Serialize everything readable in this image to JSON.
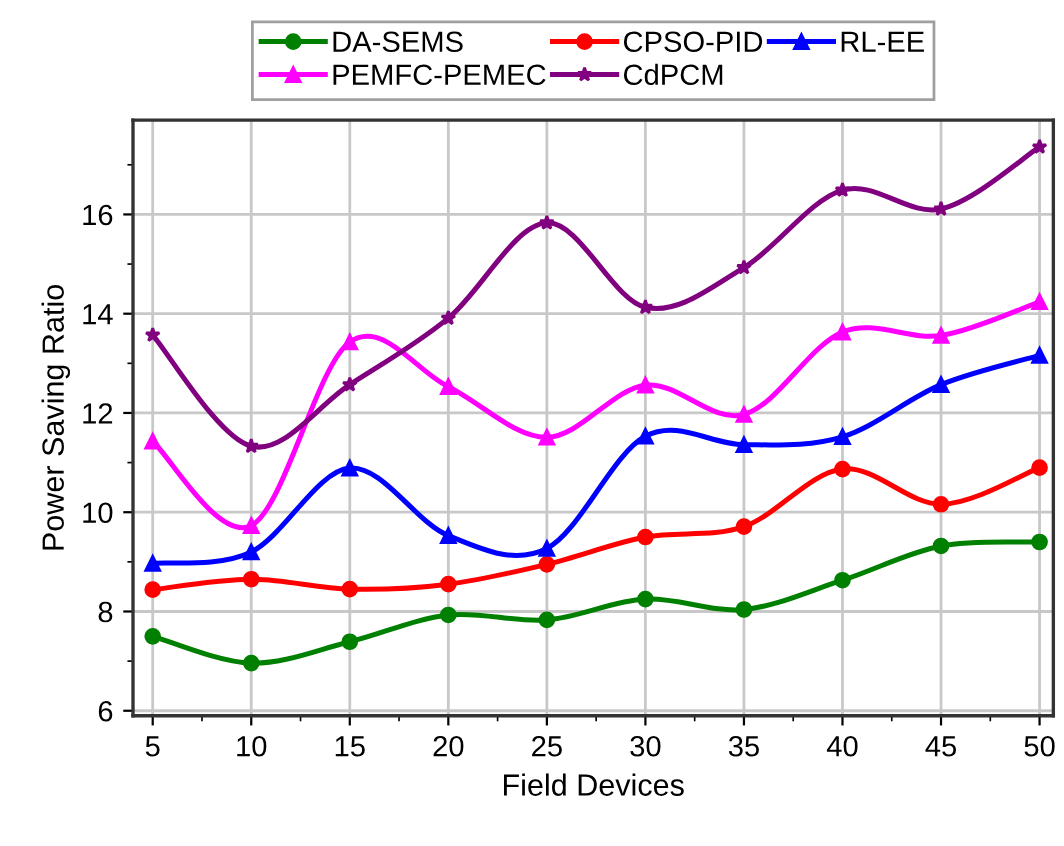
{
  "chart_data": {
    "type": "line",
    "xlabel": "Field Devices",
    "ylabel": "Power Saving Ratio",
    "x": [
      5,
      10,
      15,
      20,
      25,
      30,
      35,
      40,
      45,
      50
    ],
    "xlim": [
      4,
      50.7
    ],
    "xticks": [
      5,
      10,
      15,
      20,
      25,
      30,
      35,
      40,
      45,
      50
    ],
    "ylim": [
      5.9,
      17.9
    ],
    "yticks": [
      6,
      8,
      10,
      12,
      14,
      16
    ],
    "grid": true,
    "legend": "top",
    "line_style": "solid",
    "series": [
      {
        "name": "DA-SEMS",
        "color": "#008000",
        "marker": "circle",
        "values": [
          7.5,
          6.96,
          7.39,
          7.93,
          7.83,
          8.25,
          8.04,
          8.63,
          9.32,
          9.4
        ]
      },
      {
        "name": "CPSO-PID",
        "color": "#ff0000",
        "marker": "circle",
        "values": [
          8.44,
          8.65,
          8.45,
          8.55,
          8.95,
          9.5,
          9.71,
          10.87,
          10.16,
          10.9
        ]
      },
      {
        "name": "RL-EE",
        "color": "#0000ff",
        "marker": "triangle",
        "values": [
          8.97,
          9.2,
          10.89,
          9.53,
          9.27,
          11.53,
          11.36,
          11.52,
          12.57,
          13.16
        ]
      },
      {
        "name": "PEMFC-PEMEC",
        "color": "#ff00ff",
        "marker": "triangle",
        "values": [
          11.43,
          9.73,
          13.43,
          12.53,
          11.51,
          12.56,
          11.97,
          13.63,
          13.56,
          14.24
        ]
      },
      {
        "name": "CdPCM",
        "color": "#800080",
        "marker": "star",
        "values": [
          13.57,
          11.33,
          12.57,
          13.91,
          15.83,
          14.13,
          14.93,
          16.49,
          16.11,
          17.36
        ]
      }
    ]
  }
}
